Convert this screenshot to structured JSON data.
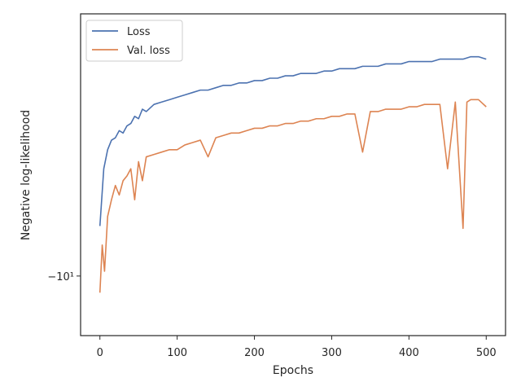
{
  "chart_data": {
    "type": "line",
    "xlabel": "Epochs",
    "ylabel": "Negative log-likelihood",
    "xlim": [
      -25,
      525
    ],
    "ylim": [
      -10.25,
      -8.9
    ],
    "yscale": "symlog (displayed as decreasing negative values)",
    "x_ticks": [
      0,
      100,
      200,
      300,
      400,
      500
    ],
    "x_tick_labels": [
      "0",
      "100",
      "200",
      "300",
      "400",
      "500"
    ],
    "y_ticks": [
      -10
    ],
    "y_tick_labels": [
      "−10¹"
    ],
    "grid": false,
    "legend_position": "top-left",
    "series": [
      {
        "name": "Loss",
        "color": "#4c72b0",
        "points": [
          [
            0,
            -9.79
          ],
          [
            5,
            -9.55
          ],
          [
            10,
            -9.47
          ],
          [
            15,
            -9.43
          ],
          [
            20,
            -9.42
          ],
          [
            25,
            -9.39
          ],
          [
            30,
            -9.4
          ],
          [
            35,
            -9.37
          ],
          [
            40,
            -9.36
          ],
          [
            45,
            -9.33
          ],
          [
            50,
            -9.34
          ],
          [
            55,
            -9.3
          ],
          [
            60,
            -9.31
          ],
          [
            70,
            -9.28
          ],
          [
            80,
            -9.27
          ],
          [
            90,
            -9.26
          ],
          [
            100,
            -9.25
          ],
          [
            110,
            -9.24
          ],
          [
            120,
            -9.23
          ],
          [
            130,
            -9.22
          ],
          [
            140,
            -9.22
          ],
          [
            150,
            -9.21
          ],
          [
            160,
            -9.2
          ],
          [
            170,
            -9.2
          ],
          [
            180,
            -9.19
          ],
          [
            190,
            -9.19
          ],
          [
            200,
            -9.18
          ],
          [
            210,
            -9.18
          ],
          [
            220,
            -9.17
          ],
          [
            230,
            -9.17
          ],
          [
            240,
            -9.16
          ],
          [
            250,
            -9.16
          ],
          [
            260,
            -9.15
          ],
          [
            270,
            -9.15
          ],
          [
            280,
            -9.15
          ],
          [
            290,
            -9.14
          ],
          [
            300,
            -9.14
          ],
          [
            310,
            -9.13
          ],
          [
            320,
            -9.13
          ],
          [
            330,
            -9.13
          ],
          [
            340,
            -9.12
          ],
          [
            350,
            -9.12
          ],
          [
            360,
            -9.12
          ],
          [
            370,
            -9.11
          ],
          [
            380,
            -9.11
          ],
          [
            390,
            -9.11
          ],
          [
            400,
            -9.1
          ],
          [
            410,
            -9.1
          ],
          [
            420,
            -9.1
          ],
          [
            430,
            -9.1
          ],
          [
            440,
            -9.09
          ],
          [
            450,
            -9.09
          ],
          [
            460,
            -9.09
          ],
          [
            470,
            -9.09
          ],
          [
            480,
            -9.08
          ],
          [
            490,
            -9.08
          ],
          [
            500,
            -9.09
          ]
        ]
      },
      {
        "name": "Val. loss",
        "color": "#dd8452",
        "points": [
          [
            0,
            -10.07
          ],
          [
            3,
            -9.87
          ],
          [
            6,
            -9.98
          ],
          [
            10,
            -9.75
          ],
          [
            15,
            -9.68
          ],
          [
            20,
            -9.62
          ],
          [
            25,
            -9.66
          ],
          [
            30,
            -9.6
          ],
          [
            35,
            -9.58
          ],
          [
            40,
            -9.55
          ],
          [
            45,
            -9.68
          ],
          [
            50,
            -9.52
          ],
          [
            55,
            -9.6
          ],
          [
            60,
            -9.5
          ],
          [
            70,
            -9.49
          ],
          [
            80,
            -9.48
          ],
          [
            90,
            -9.47
          ],
          [
            100,
            -9.47
          ],
          [
            110,
            -9.45
          ],
          [
            120,
            -9.44
          ],
          [
            130,
            -9.43
          ],
          [
            140,
            -9.5
          ],
          [
            150,
            -9.42
          ],
          [
            160,
            -9.41
          ],
          [
            170,
            -9.4
          ],
          [
            180,
            -9.4
          ],
          [
            190,
            -9.39
          ],
          [
            200,
            -9.38
          ],
          [
            210,
            -9.38
          ],
          [
            220,
            -9.37
          ],
          [
            230,
            -9.37
          ],
          [
            240,
            -9.36
          ],
          [
            250,
            -9.36
          ],
          [
            260,
            -9.35
          ],
          [
            270,
            -9.35
          ],
          [
            280,
            -9.34
          ],
          [
            290,
            -9.34
          ],
          [
            300,
            -9.33
          ],
          [
            310,
            -9.33
          ],
          [
            320,
            -9.32
          ],
          [
            330,
            -9.32
          ],
          [
            340,
            -9.48
          ],
          [
            350,
            -9.31
          ],
          [
            360,
            -9.31
          ],
          [
            370,
            -9.3
          ],
          [
            380,
            -9.3
          ],
          [
            390,
            -9.3
          ],
          [
            400,
            -9.29
          ],
          [
            410,
            -9.29
          ],
          [
            420,
            -9.28
          ],
          [
            430,
            -9.28
          ],
          [
            440,
            -9.28
          ],
          [
            450,
            -9.55
          ],
          [
            460,
            -9.27
          ],
          [
            470,
            -9.8
          ],
          [
            475,
            -9.27
          ],
          [
            480,
            -9.26
          ],
          [
            490,
            -9.26
          ],
          [
            500,
            -9.29
          ]
        ]
      }
    ]
  }
}
